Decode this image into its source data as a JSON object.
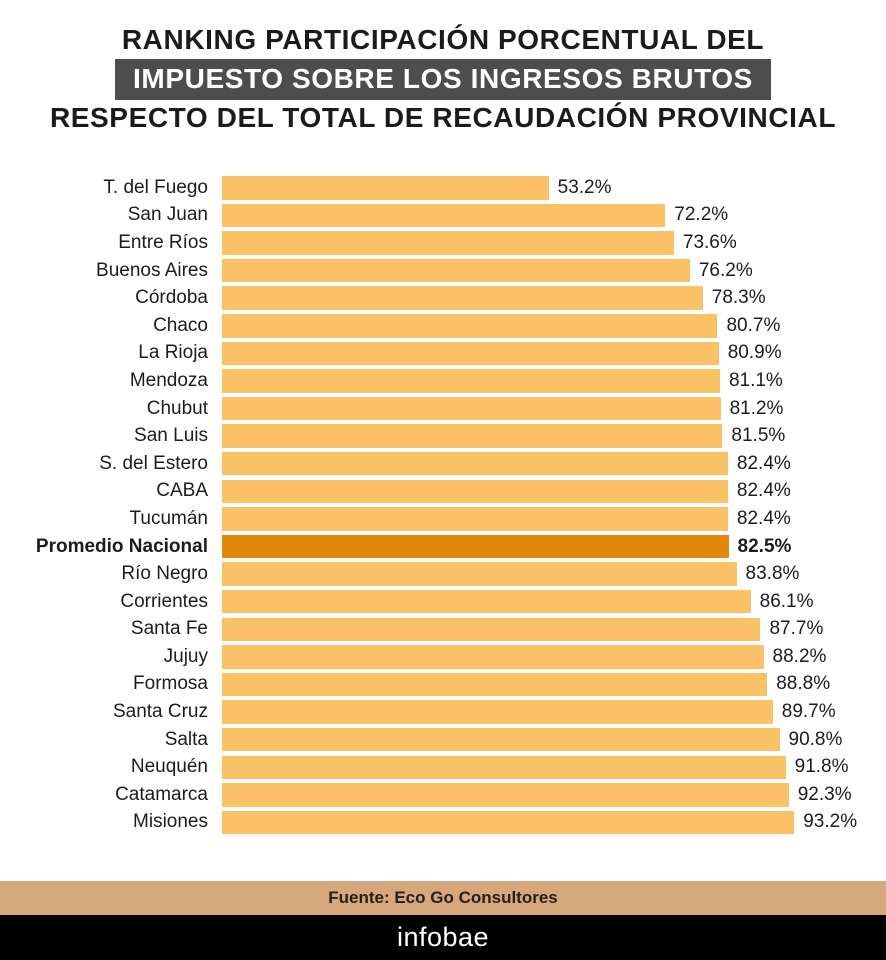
{
  "title": {
    "line1": "RANKING PARTICIPACIÓN PORCENTUAL DEL",
    "line2": "IMPUESTO SOBRE LOS INGRESOS BRUTOS",
    "line3": "RESPECTO DEL TOTAL DE RECAUDACIÓN PROVINCIAL"
  },
  "chart_data": {
    "type": "bar",
    "orientation": "horizontal",
    "title": "Ranking participación porcentual del impuesto sobre los ingresos brutos respecto del total de recaudación provincial",
    "value_unit": "%",
    "xlim": [
      0,
      100
    ],
    "grid": false,
    "legend": null,
    "categories": [
      "T. del Fuego",
      "San Juan",
      "Entre Ríos",
      "Buenos Aires",
      "Córdoba",
      "Chaco",
      "La Rioja",
      "Mendoza",
      "Chubut",
      "San Luis",
      "S. del Estero",
      "CABA",
      "Tucumán",
      "Promedio Nacional",
      "Río Negro",
      "Corrientes",
      "Santa Fe",
      "Jujuy",
      "Formosa",
      "Santa Cruz",
      "Salta",
      "Neuquén",
      "Catamarca",
      "Misiones"
    ],
    "values": [
      53.2,
      72.2,
      73.6,
      76.2,
      78.3,
      80.7,
      80.9,
      81.1,
      81.2,
      81.5,
      82.4,
      82.4,
      82.4,
      82.5,
      83.8,
      86.1,
      87.7,
      88.2,
      88.8,
      89.7,
      90.8,
      91.8,
      92.3,
      93.2
    ],
    "highlight_index": 13,
    "highlight_category": "Promedio Nacional",
    "bar_color": "#fac167",
    "highlight_color": "#de8909"
  },
  "footer": {
    "source": "Fuente: Eco Go Consultores",
    "brand": "infobae"
  },
  "colors": {
    "title_text": "#1b1b1b",
    "title_highlight_bg": "#4d4d4d",
    "title_highlight_text": "#ffffff",
    "source_bg": "#d6a77c",
    "source_text": "#26201a",
    "brand_bg": "#000000",
    "brand_text": "#ffffff"
  }
}
